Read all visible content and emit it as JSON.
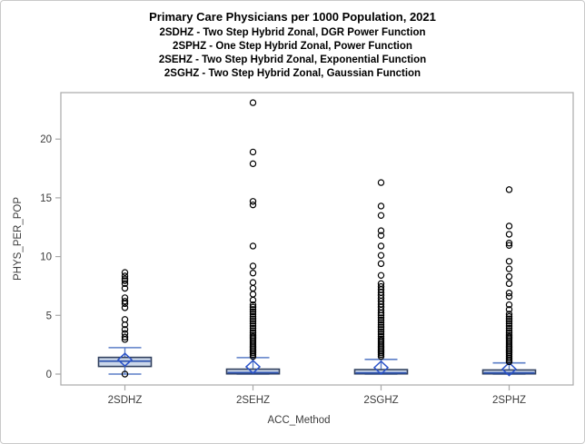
{
  "chart_data": {
    "type": "boxplot",
    "title": "Primary Care Physicians per 1000 Population, 2021",
    "subtitles": [
      "2SDHZ - Two Step Hybrid Zonal, DGR Power Function",
      "2SPHZ - One Step Hybrid Zonal, Power Function",
      "2SEHZ - Two Step Hybrid Zonal, Exponential Function",
      "2SGHZ - Two Step Hybrid Zonal, Gaussian Function"
    ],
    "xlabel": "ACC_Method",
    "ylabel": "PHYS_PER_POP",
    "ylim": [
      0,
      24
    ],
    "yticks": [
      0,
      5,
      10,
      15,
      20
    ],
    "grid": false,
    "legend": "none",
    "categories": [
      "2SDHZ",
      "2SEHZ",
      "2SGHZ",
      "2SPHZ"
    ],
    "series": [
      {
        "name": "2SDHZ",
        "q1": 0.65,
        "median": 1.1,
        "q3": 1.42,
        "mean": 1.22,
        "whisker_low": 0.0,
        "whisker_high": 2.25,
        "outliers": [
          8.65,
          8.35,
          8.1,
          7.95,
          7.7,
          7.3,
          6.5,
          6.2,
          6.0,
          5.65,
          4.65,
          4.2,
          3.8,
          3.45,
          3.15,
          2.95,
          0.0
        ]
      },
      {
        "name": "2SEHZ",
        "q1": 0.02,
        "median": 0.12,
        "q3": 0.42,
        "mean": 0.62,
        "whisker_low": 0.0,
        "whisker_high": 1.4,
        "outliers": [
          23.1,
          18.9,
          17.9,
          14.7,
          14.4,
          10.9,
          9.2,
          8.6,
          7.8,
          7.3,
          6.8,
          6.3,
          5.9,
          5.7,
          5.5,
          5.3,
          5.1,
          4.9,
          4.7,
          4.5,
          4.3,
          4.1,
          3.9,
          3.7,
          3.5,
          3.3,
          3.15,
          3.0,
          2.85,
          2.7,
          2.55,
          2.4,
          2.25,
          2.1,
          1.95,
          1.8,
          1.65,
          1.5
        ]
      },
      {
        "name": "2SGHZ",
        "q1": 0.02,
        "median": 0.1,
        "q3": 0.38,
        "mean": 0.55,
        "whisker_low": 0.0,
        "whisker_high": 1.25,
        "outliers": [
          16.3,
          14.3,
          13.5,
          12.2,
          11.8,
          10.9,
          10.1,
          9.4,
          8.4,
          7.7,
          7.45,
          7.2,
          6.95,
          6.7,
          6.45,
          6.2,
          5.95,
          5.7,
          5.45,
          5.2,
          5.0,
          4.8,
          4.6,
          4.4,
          4.2,
          4.0,
          3.8,
          3.6,
          3.4,
          3.2,
          3.0,
          2.85,
          2.7,
          2.55,
          2.4,
          2.25,
          2.1,
          1.95,
          1.8,
          1.65,
          1.5
        ]
      },
      {
        "name": "2SPHZ",
        "q1": 0.02,
        "median": 0.1,
        "q3": 0.35,
        "mean": 0.42,
        "whisker_low": 0.0,
        "whisker_high": 0.95,
        "outliers": [
          15.7,
          12.6,
          11.9,
          11.15,
          10.95,
          9.6,
          8.95,
          8.3,
          7.7,
          6.9,
          6.6,
          5.9,
          5.5,
          5.1,
          4.9,
          4.7,
          4.5,
          4.3,
          4.1,
          3.9,
          3.7,
          3.5,
          3.3,
          3.15,
          3.0,
          2.85,
          2.7,
          2.55,
          2.4,
          2.25,
          2.1,
          1.95,
          1.8,
          1.65,
          1.5,
          1.35,
          1.2,
          1.05
        ]
      }
    ],
    "colors": {
      "box_fill": "#ccd8ea",
      "box_border": "#31405e",
      "whisker": "#5b7ec7",
      "median": "#2f54b0",
      "mean_diamond": "#2a52c9",
      "outlier": "#000000",
      "frame": "#a9a9a9",
      "text": "#3c3c3c",
      "title_text": "#000000"
    }
  }
}
